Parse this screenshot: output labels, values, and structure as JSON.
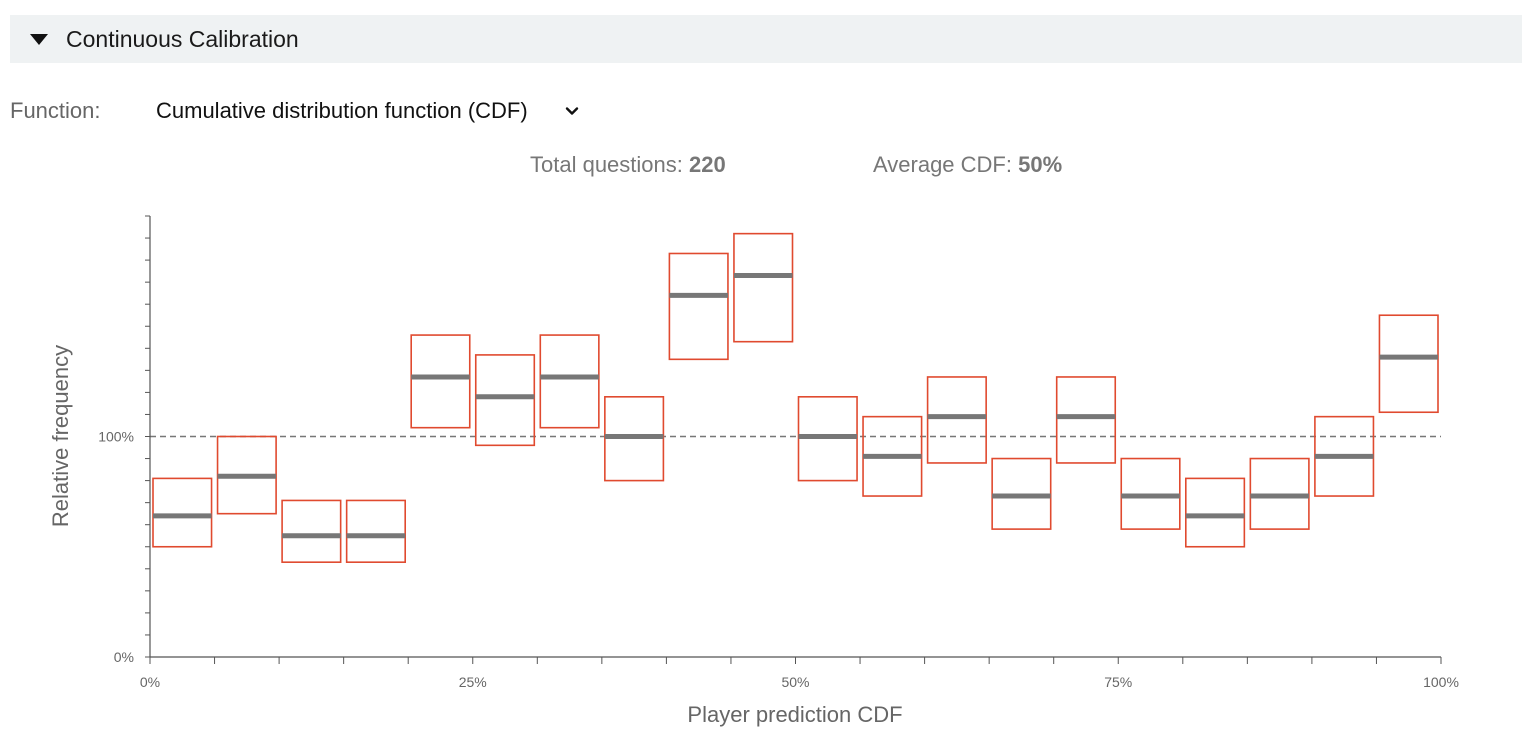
{
  "section": {
    "title": "Continuous Calibration",
    "expanded_icon": "caret-down-icon"
  },
  "function": {
    "label": "Function:",
    "value": "Cumulative distribution function (CDF)",
    "dropdown_icon": "chevron-down-icon"
  },
  "stats": {
    "total_label": "Total questions: ",
    "total_value": "220",
    "avg_label": "Average CDF: ",
    "avg_value": "50%"
  },
  "colors": {
    "box": "#e04a2f",
    "median": "#777777",
    "reference": "#777777",
    "axis": "#555555"
  },
  "chart_data": {
    "type": "box",
    "xlabel": "Player prediction CDF",
    "ylabel": "Relative frequency",
    "xlim": [
      0,
      1
    ],
    "ylim": [
      0,
      2.0
    ],
    "x_ticks": [
      {
        "v": 0,
        "label": "0%"
      },
      {
        "v": 0.25,
        "label": "25%"
      },
      {
        "v": 0.5,
        "label": "50%"
      },
      {
        "v": 0.75,
        "label": "75%"
      },
      {
        "v": 1,
        "label": "100%"
      }
    ],
    "y_ticks": [
      {
        "v": 0,
        "label": "0%"
      },
      {
        "v": 1,
        "label": "100%"
      }
    ],
    "reference_line": 1,
    "bins": [
      {
        "x0": 0.0,
        "x1": 0.05,
        "low": 0.5,
        "mid": 0.64,
        "high": 0.81
      },
      {
        "x0": 0.05,
        "x1": 0.1,
        "low": 0.65,
        "mid": 0.82,
        "high": 1.0
      },
      {
        "x0": 0.1,
        "x1": 0.15,
        "low": 0.43,
        "mid": 0.55,
        "high": 0.71
      },
      {
        "x0": 0.15,
        "x1": 0.2,
        "low": 0.43,
        "mid": 0.55,
        "high": 0.71
      },
      {
        "x0": 0.2,
        "x1": 0.25,
        "low": 1.04,
        "mid": 1.27,
        "high": 1.46
      },
      {
        "x0": 0.25,
        "x1": 0.3,
        "low": 0.96,
        "mid": 1.18,
        "high": 1.37
      },
      {
        "x0": 0.3,
        "x1": 0.35,
        "low": 1.04,
        "mid": 1.27,
        "high": 1.46
      },
      {
        "x0": 0.35,
        "x1": 0.4,
        "low": 0.8,
        "mid": 1.0,
        "high": 1.18
      },
      {
        "x0": 0.4,
        "x1": 0.45,
        "low": 1.35,
        "mid": 1.64,
        "high": 1.83
      },
      {
        "x0": 0.45,
        "x1": 0.5,
        "low": 1.43,
        "mid": 1.73,
        "high": 1.92
      },
      {
        "x0": 0.5,
        "x1": 0.55,
        "low": 0.8,
        "mid": 1.0,
        "high": 1.18
      },
      {
        "x0": 0.55,
        "x1": 0.6,
        "low": 0.73,
        "mid": 0.91,
        "high": 1.09
      },
      {
        "x0": 0.6,
        "x1": 0.65,
        "low": 0.88,
        "mid": 1.09,
        "high": 1.27
      },
      {
        "x0": 0.65,
        "x1": 0.7,
        "low": 0.58,
        "mid": 0.73,
        "high": 0.9
      },
      {
        "x0": 0.7,
        "x1": 0.75,
        "low": 0.88,
        "mid": 1.09,
        "high": 1.27
      },
      {
        "x0": 0.75,
        "x1": 0.8,
        "low": 0.58,
        "mid": 0.73,
        "high": 0.9
      },
      {
        "x0": 0.8,
        "x1": 0.85,
        "low": 0.5,
        "mid": 0.64,
        "high": 0.81
      },
      {
        "x0": 0.85,
        "x1": 0.9,
        "low": 0.58,
        "mid": 0.73,
        "high": 0.9
      },
      {
        "x0": 0.9,
        "x1": 0.95,
        "low": 0.73,
        "mid": 0.91,
        "high": 1.09
      },
      {
        "x0": 0.95,
        "x1": 1.0,
        "low": 1.11,
        "mid": 1.36,
        "high": 1.55
      }
    ]
  }
}
